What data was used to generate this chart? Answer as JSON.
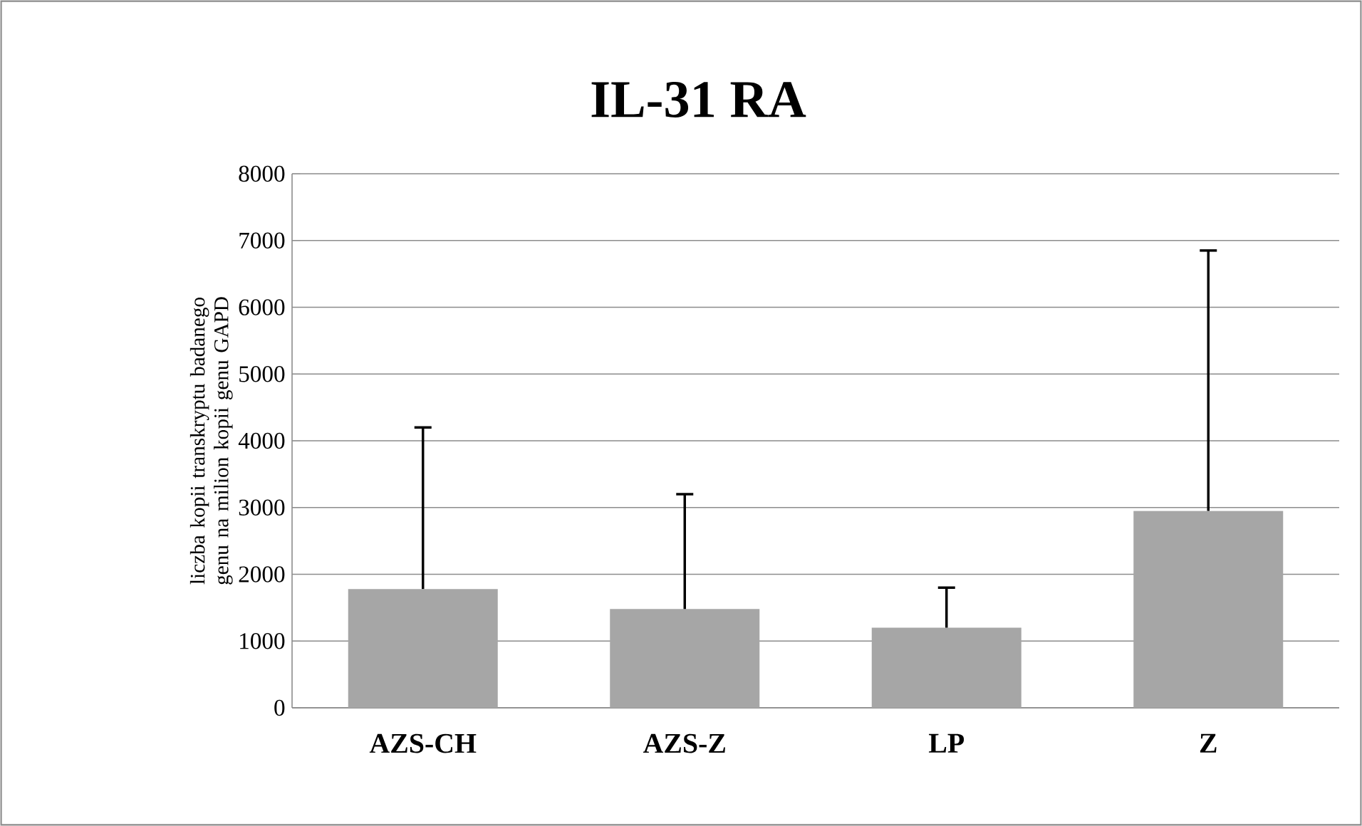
{
  "chart_data": {
    "type": "bar",
    "title": "IL-31 RA",
    "ylabel": "liczba kopii transkryptu badanego genu na milion kopii genu GAPD",
    "categories": [
      "AZS-CH",
      "AZS-Z",
      "LP",
      "Z"
    ],
    "values": [
      1780,
      1480,
      1200,
      2950
    ],
    "errors": [
      [
        1780,
        4200
      ],
      [
        1480,
        3200
      ],
      [
        1200,
        1800
      ],
      [
        2950,
        6850
      ]
    ],
    "color": "#a6a6a6",
    "ylim": [
      0,
      8000
    ],
    "yticks": [
      0,
      1000,
      2000,
      3000,
      4000,
      5000,
      6000,
      7000,
      8000
    ],
    "grid": "y"
  }
}
